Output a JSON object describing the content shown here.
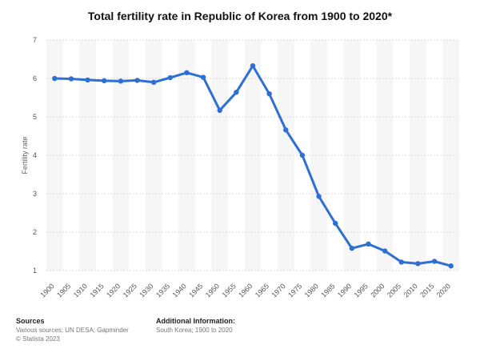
{
  "chart_data": {
    "type": "line",
    "title": "Total fertility rate in Republic of Korea from 1900 to 2020*",
    "ylabel": "Fertility rate",
    "xlabel": "",
    "ylim": [
      1,
      7
    ],
    "yticks": [
      1,
      2,
      3,
      4,
      5,
      6,
      7
    ],
    "grid": true,
    "categories": [
      "1900",
      "1905",
      "1910",
      "1915",
      "1920",
      "1925",
      "1930",
      "1935",
      "1940",
      "1945",
      "1950",
      "1955",
      "1960",
      "1965",
      "1970",
      "1975",
      "1980",
      "1985",
      "1990",
      "1995",
      "2000",
      "2005",
      "2010",
      "2015",
      "2020"
    ],
    "series": [
      {
        "values": [
          6.0,
          5.99,
          5.96,
          5.94,
          5.93,
          5.95,
          5.9,
          6.02,
          6.15,
          6.03,
          5.17,
          5.64,
          6.33,
          5.6,
          4.66,
          4.0,
          2.93,
          2.23,
          1.58,
          1.69,
          1.51,
          1.22,
          1.18,
          1.24,
          1.12
        ],
        "color": "#2e6fd4"
      }
    ]
  },
  "footer": {
    "sources_head": "Sources",
    "sources_text": "Various sources; UN DESA; Gapminder",
    "copyright": "© Statista 2023",
    "info_head": "Additional Information:",
    "info_text": "South Korea; 1900 to 2020"
  }
}
